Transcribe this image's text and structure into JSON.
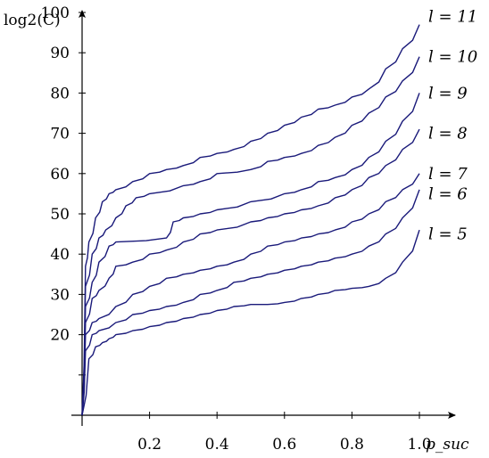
{
  "chart_data": {
    "type": "line",
    "title": "",
    "xlabel": "p_suc",
    "ylabel": "log2(C)",
    "xlim": [
      0,
      1.1
    ],
    "ylim": [
      0,
      104
    ],
    "x_ticks": [
      0.2,
      0.4,
      0.6,
      0.8,
      1.0
    ],
    "x_tick_labels": [
      "0.2",
      "0.4",
      "0.6",
      "0.8",
      "1.0"
    ],
    "y_ticks": [
      10,
      20,
      30,
      40,
      50,
      60,
      70,
      80,
      90,
      100
    ],
    "y_tick_labels": [
      "",
      "20",
      "30",
      "40",
      "50",
      "60",
      "70",
      "80",
      "90",
      "100"
    ],
    "grid": false,
    "legend": "inline-right",
    "line_color": "#1a1a7a",
    "series": [
      {
        "name": "l = 11",
        "label_y": 99,
        "points": [
          [
            0,
            0
          ],
          [
            0.01,
            37
          ],
          [
            0.02,
            43
          ],
          [
            0.04,
            49
          ],
          [
            0.06,
            53
          ],
          [
            0.08,
            55
          ],
          [
            0.1,
            56
          ],
          [
            0.15,
            58
          ],
          [
            0.2,
            60
          ],
          [
            0.25,
            61
          ],
          [
            0.3,
            62
          ],
          [
            0.35,
            64
          ],
          [
            0.4,
            65
          ],
          [
            0.45,
            66
          ],
          [
            0.5,
            68
          ],
          [
            0.55,
            70
          ],
          [
            0.6,
            72
          ],
          [
            0.65,
            74
          ],
          [
            0.7,
            76
          ],
          [
            0.75,
            77
          ],
          [
            0.8,
            79
          ],
          [
            0.85,
            81
          ],
          [
            0.9,
            86
          ],
          [
            0.95,
            91
          ],
          [
            1.0,
            97
          ]
        ]
      },
      {
        "name": "l = 10",
        "label_y": 89,
        "points": [
          [
            0,
            0
          ],
          [
            0.01,
            32
          ],
          [
            0.03,
            40
          ],
          [
            0.05,
            44
          ],
          [
            0.07,
            46
          ],
          [
            0.1,
            49
          ],
          [
            0.13,
            52
          ],
          [
            0.16,
            54
          ],
          [
            0.2,
            55
          ],
          [
            0.3,
            57
          ],
          [
            0.35,
            58
          ],
          [
            0.4,
            60
          ],
          [
            0.5,
            61
          ],
          [
            0.55,
            63
          ],
          [
            0.6,
            64
          ],
          [
            0.65,
            65
          ],
          [
            0.7,
            67
          ],
          [
            0.75,
            69
          ],
          [
            0.8,
            72
          ],
          [
            0.85,
            75
          ],
          [
            0.9,
            79
          ],
          [
            0.95,
            83
          ],
          [
            1.0,
            89
          ]
        ]
      },
      {
        "name": "l = 9",
        "label_y": 80,
        "points": [
          [
            0,
            0
          ],
          [
            0.01,
            27
          ],
          [
            0.03,
            33
          ],
          [
            0.05,
            38
          ],
          [
            0.08,
            42
          ],
          [
            0.1,
            43
          ],
          [
            0.25,
            44
          ],
          [
            0.27,
            48
          ],
          [
            0.3,
            49
          ],
          [
            0.35,
            50
          ],
          [
            0.4,
            51
          ],
          [
            0.5,
            53
          ],
          [
            0.6,
            55
          ],
          [
            0.65,
            56
          ],
          [
            0.7,
            58
          ],
          [
            0.75,
            59
          ],
          [
            0.8,
            61
          ],
          [
            0.85,
            64
          ],
          [
            0.9,
            68
          ],
          [
            0.95,
            73
          ],
          [
            1.0,
            80
          ]
        ]
      },
      {
        "name": "l = 8",
        "label_y": 70,
        "points": [
          [
            0,
            0
          ],
          [
            0.01,
            23
          ],
          [
            0.03,
            29
          ],
          [
            0.05,
            31
          ],
          [
            0.08,
            34
          ],
          [
            0.1,
            37
          ],
          [
            0.15,
            38
          ],
          [
            0.2,
            40
          ],
          [
            0.25,
            41
          ],
          [
            0.3,
            43
          ],
          [
            0.35,
            45
          ],
          [
            0.4,
            46
          ],
          [
            0.5,
            48
          ],
          [
            0.55,
            49
          ],
          [
            0.6,
            50
          ],
          [
            0.65,
            51
          ],
          [
            0.7,
            52
          ],
          [
            0.75,
            54
          ],
          [
            0.8,
            56
          ],
          [
            0.85,
            59
          ],
          [
            0.9,
            62
          ],
          [
            0.95,
            66
          ],
          [
            1.0,
            71
          ]
        ]
      },
      {
        "name": "l = 7",
        "label_y": 60,
        "points": [
          [
            0,
            0
          ],
          [
            0.01,
            20
          ],
          [
            0.03,
            23
          ],
          [
            0.05,
            24
          ],
          [
            0.1,
            27
          ],
          [
            0.15,
            30
          ],
          [
            0.2,
            32
          ],
          [
            0.25,
            34
          ],
          [
            0.3,
            35
          ],
          [
            0.35,
            36
          ],
          [
            0.4,
            37
          ],
          [
            0.45,
            38
          ],
          [
            0.5,
            40
          ],
          [
            0.55,
            42
          ],
          [
            0.6,
            43
          ],
          [
            0.65,
            44
          ],
          [
            0.7,
            45
          ],
          [
            0.75,
            46
          ],
          [
            0.8,
            48
          ],
          [
            0.85,
            50
          ],
          [
            0.9,
            53
          ],
          [
            0.95,
            56
          ],
          [
            1.0,
            60
          ]
        ]
      },
      {
        "name": "l = 6",
        "label_y": 55,
        "points": [
          [
            0,
            0
          ],
          [
            0.01,
            16
          ],
          [
            0.03,
            20
          ],
          [
            0.05,
            21
          ],
          [
            0.1,
            23
          ],
          [
            0.15,
            25
          ],
          [
            0.2,
            26
          ],
          [
            0.25,
            27
          ],
          [
            0.3,
            28
          ],
          [
            0.35,
            30
          ],
          [
            0.4,
            31
          ],
          [
            0.45,
            33
          ],
          [
            0.5,
            34
          ],
          [
            0.55,
            35
          ],
          [
            0.6,
            36
          ],
          [
            0.65,
            37
          ],
          [
            0.7,
            38
          ],
          [
            0.75,
            39
          ],
          [
            0.8,
            40
          ],
          [
            0.85,
            42
          ],
          [
            0.9,
            45
          ],
          [
            0.95,
            49
          ],
          [
            1.0,
            56
          ]
        ]
      },
      {
        "name": "l = 5",
        "label_y": 45,
        "points": [
          [
            0,
            0
          ],
          [
            0.02,
            14
          ],
          [
            0.04,
            17
          ],
          [
            0.06,
            18
          ],
          [
            0.08,
            19
          ],
          [
            0.1,
            20
          ],
          [
            0.15,
            21
          ],
          [
            0.2,
            22
          ],
          [
            0.25,
            23
          ],
          [
            0.3,
            24
          ],
          [
            0.35,
            25
          ],
          [
            0.4,
            26
          ],
          [
            0.45,
            27
          ],
          [
            0.5,
            27.5
          ],
          [
            0.55,
            27.5
          ],
          [
            0.6,
            28
          ],
          [
            0.65,
            29
          ],
          [
            0.7,
            30
          ],
          [
            0.75,
            31
          ],
          [
            0.8,
            31.5
          ],
          [
            0.85,
            32
          ],
          [
            0.9,
            34
          ],
          [
            0.95,
            38
          ],
          [
            1.0,
            46
          ]
        ]
      }
    ]
  }
}
